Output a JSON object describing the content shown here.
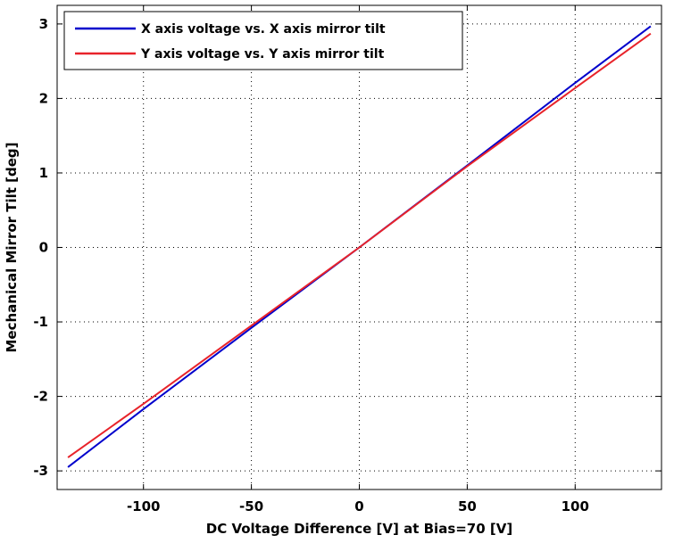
{
  "chart_data": {
    "type": "line",
    "title": "",
    "xlabel": "DC Voltage Difference [V] at Bias=70 [V]",
    "ylabel": "Mechanical Mirror Tilt [deg]",
    "xlim": [
      -140,
      140
    ],
    "ylim": [
      -3.25,
      3.25
    ],
    "x_ticks": [
      -100,
      -50,
      0,
      50,
      100
    ],
    "y_ticks": [
      -3,
      -2,
      -1,
      0,
      1,
      2,
      3
    ],
    "grid": true,
    "grid_style": "dotted",
    "legend_position": "top-left",
    "series": [
      {
        "name": "X axis voltage vs. X axis mirror tilt",
        "color": "#0000cc",
        "x": [
          -135,
          -100,
          -50,
          0,
          50,
          100,
          135
        ],
        "y": [
          -2.95,
          -2.17,
          -1.08,
          0.0,
          1.1,
          2.21,
          2.97
        ]
      },
      {
        "name": "Y axis voltage vs. Y axis mirror tilt",
        "color": "#e8232a",
        "x": [
          -135,
          -100,
          -50,
          0,
          50,
          100,
          135
        ],
        "y": [
          -2.82,
          -2.1,
          -1.05,
          0.0,
          1.09,
          2.14,
          2.87
        ]
      }
    ]
  }
}
